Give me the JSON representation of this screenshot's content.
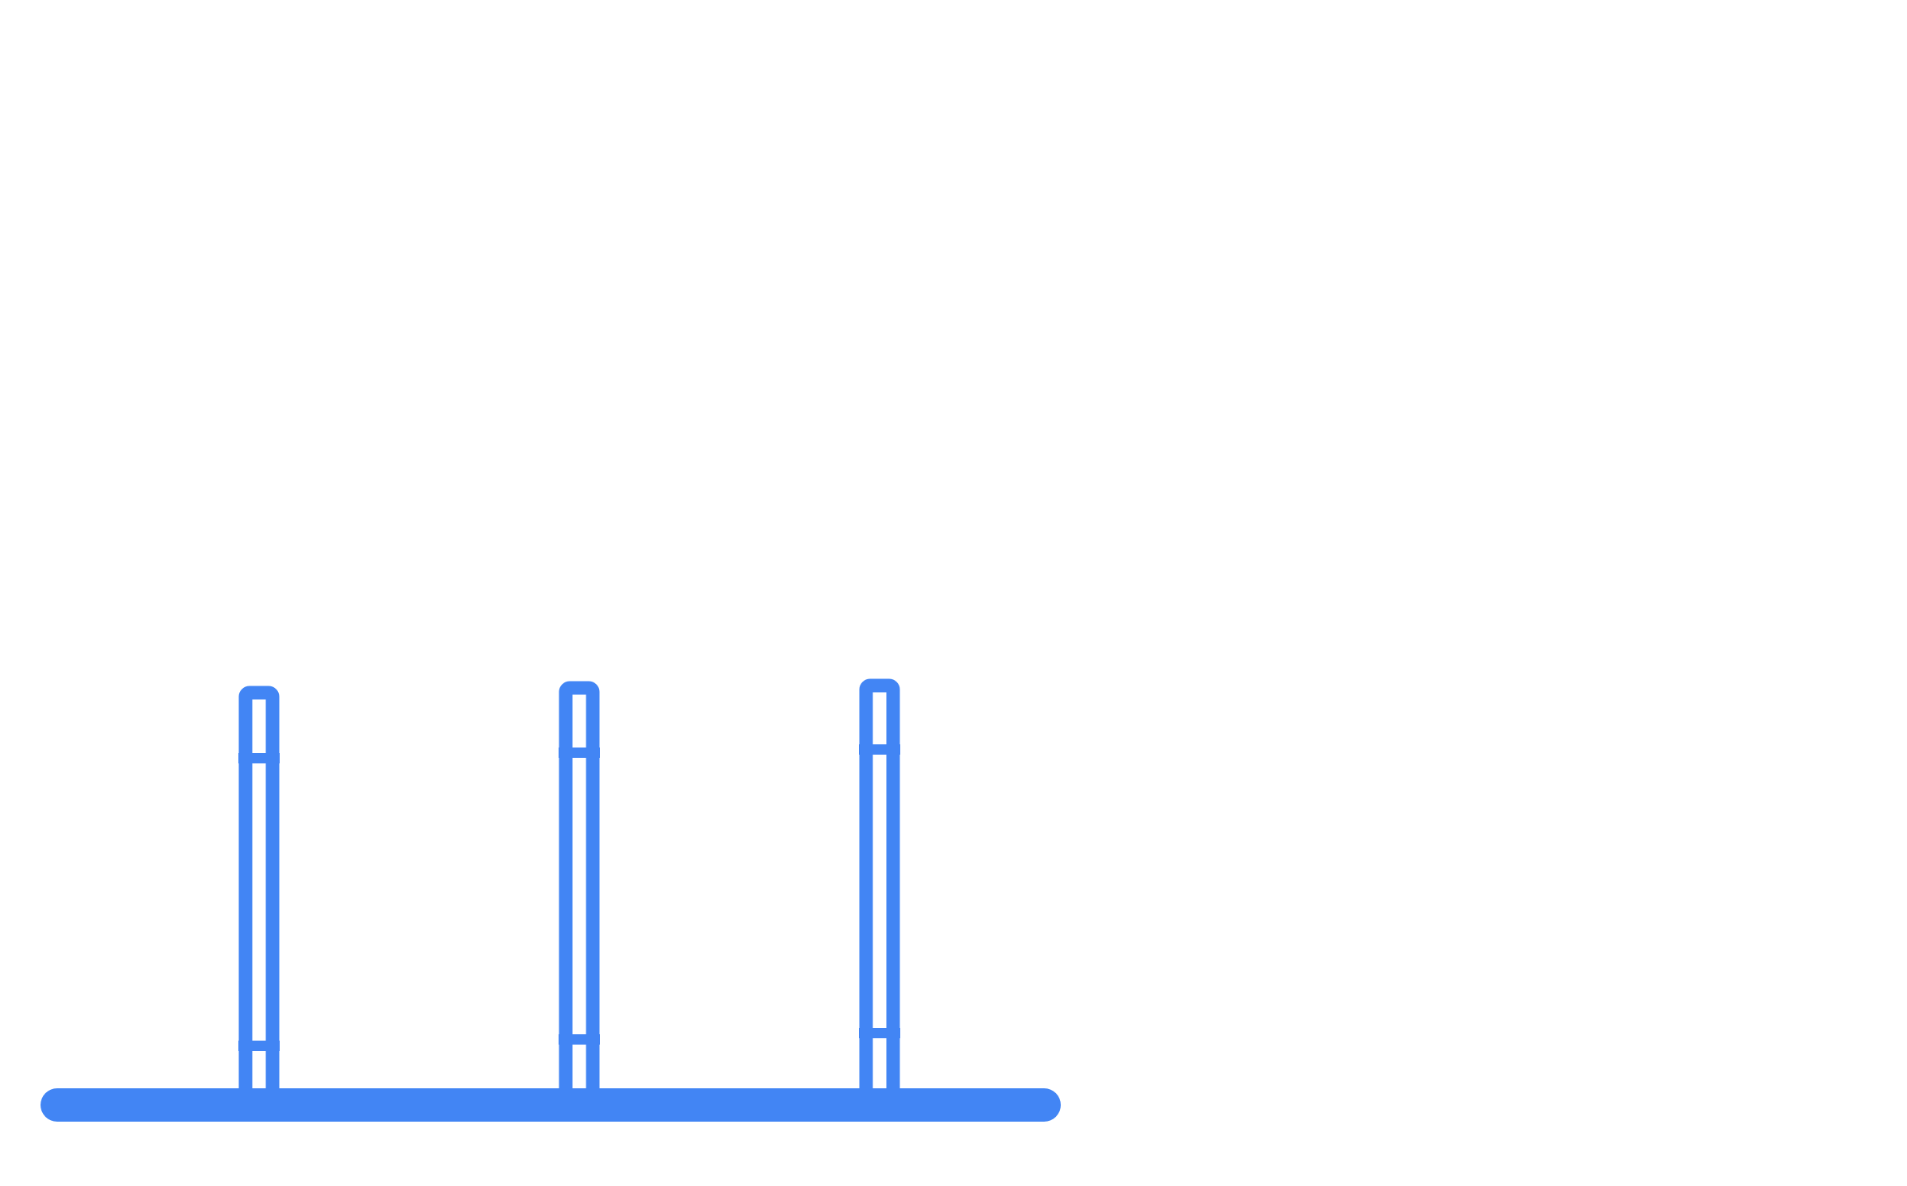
{
  "illustration": {
    "subject": "three-posts-on-base",
    "icon": "columns-outline-icon",
    "stroke_color": "#4285F4",
    "fill_color": "#FFFFFF",
    "background_color": "#FFFFFF",
    "post_count": 3,
    "post_style": "outlined-with-two-cross-bands"
  }
}
